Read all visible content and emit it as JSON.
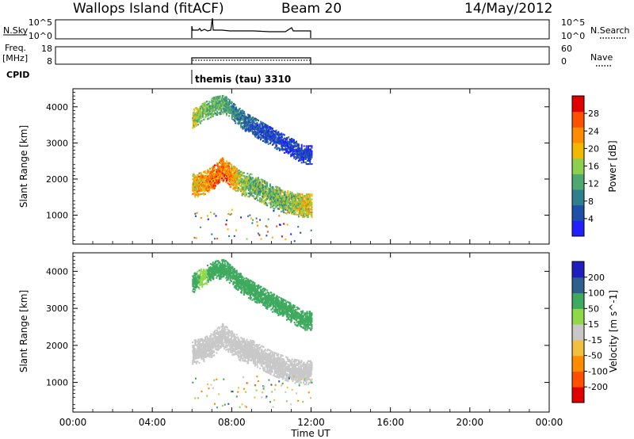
{
  "header": {
    "station": "Wallops Island (fitACF)",
    "beam": "Beam 20",
    "date": "14/May/2012"
  },
  "strips": {
    "nsky_label": "N.Sky",
    "nsearch_label": "N.Search",
    "noise_top_tick": "10^5",
    "noise_bottom_tick": "10^0",
    "freq_label_line1": "Freq.",
    "freq_label_line2": "[MHz]",
    "freq_top_tick": "18",
    "freq_bottom_tick": "8",
    "nave_label": "Nave",
    "nave_top_tick": "60",
    "nave_bottom_tick": "0",
    "cpid_label": "CPID",
    "cpid_value": "themis (tau) 3310"
  },
  "x_axis": {
    "title": "Time UT",
    "ticks": [
      "00:00",
      "04:00",
      "08:00",
      "12:00",
      "16:00",
      "20:00",
      "00:00"
    ]
  },
  "colors": {
    "power_scale": [
      "#1f1fff",
      "#1f4fa8",
      "#2f7f8f",
      "#4fa86f",
      "#8fcf4f",
      "#f0b800",
      "#ff8c00",
      "#ff5000",
      "#e00000"
    ],
    "velocity_scale": [
      "#e00000",
      "#ff5000",
      "#ff8c00",
      "#f0c040",
      "#c8c8c8",
      "#8fd848",
      "#3faa5f",
      "#2f5f8f",
      "#1f1fbf"
    ]
  },
  "chart_data": [
    {
      "type": "heatmap",
      "panel": "power",
      "title": "",
      "xlabel": "Time UT",
      "ylabel": "Slant Range [km]",
      "x_unit": "hours UT",
      "xlim": [
        0,
        24
      ],
      "ylim": [
        200,
        4500
      ],
      "yticks": [
        1000,
        2000,
        3000,
        4000
      ],
      "colorbar": {
        "label": "Power [dB]",
        "ticks": [
          4,
          8,
          12,
          16,
          20,
          24,
          28
        ],
        "range": [
          0,
          32
        ]
      },
      "bands": [
        {
          "name": "far band",
          "t": [
            6.0,
            6.6,
            7.1,
            7.6,
            8.0,
            8.7,
            9.5,
            10.3,
            11.0,
            11.6
          ],
          "range": [
            3700,
            3900,
            4050,
            4100,
            3900,
            3600,
            3350,
            3100,
            2900,
            2700
          ],
          "value": [
            17,
            14,
            14,
            12,
            10,
            7,
            5,
            5,
            4,
            4
          ]
        },
        {
          "name": "near band",
          "t": [
            6.0,
            6.5,
            7.0,
            7.5,
            8.0,
            8.5,
            9.0,
            9.5,
            10.0,
            10.5,
            11.0,
            11.5,
            12.0
          ],
          "range": [
            1850,
            1900,
            2050,
            2300,
            2100,
            1900,
            1850,
            1700,
            1550,
            1450,
            1350,
            1300,
            1300
          ],
          "value": [
            20,
            22,
            24,
            25,
            22,
            16,
            14,
            14,
            14,
            14,
            15,
            18,
            18
          ]
        }
      ]
    },
    {
      "type": "heatmap",
      "panel": "velocity",
      "title": "",
      "xlabel": "Time UT",
      "ylabel": "Slant Range [km]",
      "x_unit": "hours UT",
      "xlim": [
        0,
        24
      ],
      "ylim": [
        200,
        4500
      ],
      "yticks": [
        1000,
        2000,
        3000,
        4000
      ],
      "colorbar": {
        "label": "Velocity [m s^-1]",
        "ticks": [
          -200,
          -100,
          -50,
          -15,
          15,
          50,
          100,
          200
        ]
      },
      "bands": [
        {
          "name": "far band",
          "t": [
            6.0,
            6.6,
            7.1,
            7.6,
            8.0,
            8.7,
            9.5,
            10.3,
            11.0,
            11.6
          ],
          "range": [
            3700,
            3900,
            4050,
            4100,
            3900,
            3600,
            3350,
            3100,
            2900,
            2700
          ],
          "value": [
            60,
            40,
            70,
            80,
            60,
            60,
            60,
            70,
            60,
            60
          ]
        },
        {
          "name": "near band",
          "t": [
            6.0,
            6.5,
            7.0,
            7.5,
            8.0,
            8.5,
            9.0,
            9.5,
            10.0,
            10.5,
            11.0,
            11.5,
            12.0
          ],
          "range": [
            1850,
            1900,
            2050,
            2300,
            2100,
            1900,
            1850,
            1700,
            1550,
            1450,
            1350,
            1300,
            1300
          ],
          "value": [
            0,
            5,
            0,
            5,
            0,
            -5,
            0,
            0,
            5,
            0,
            -5,
            0,
            0
          ]
        }
      ]
    }
  ]
}
